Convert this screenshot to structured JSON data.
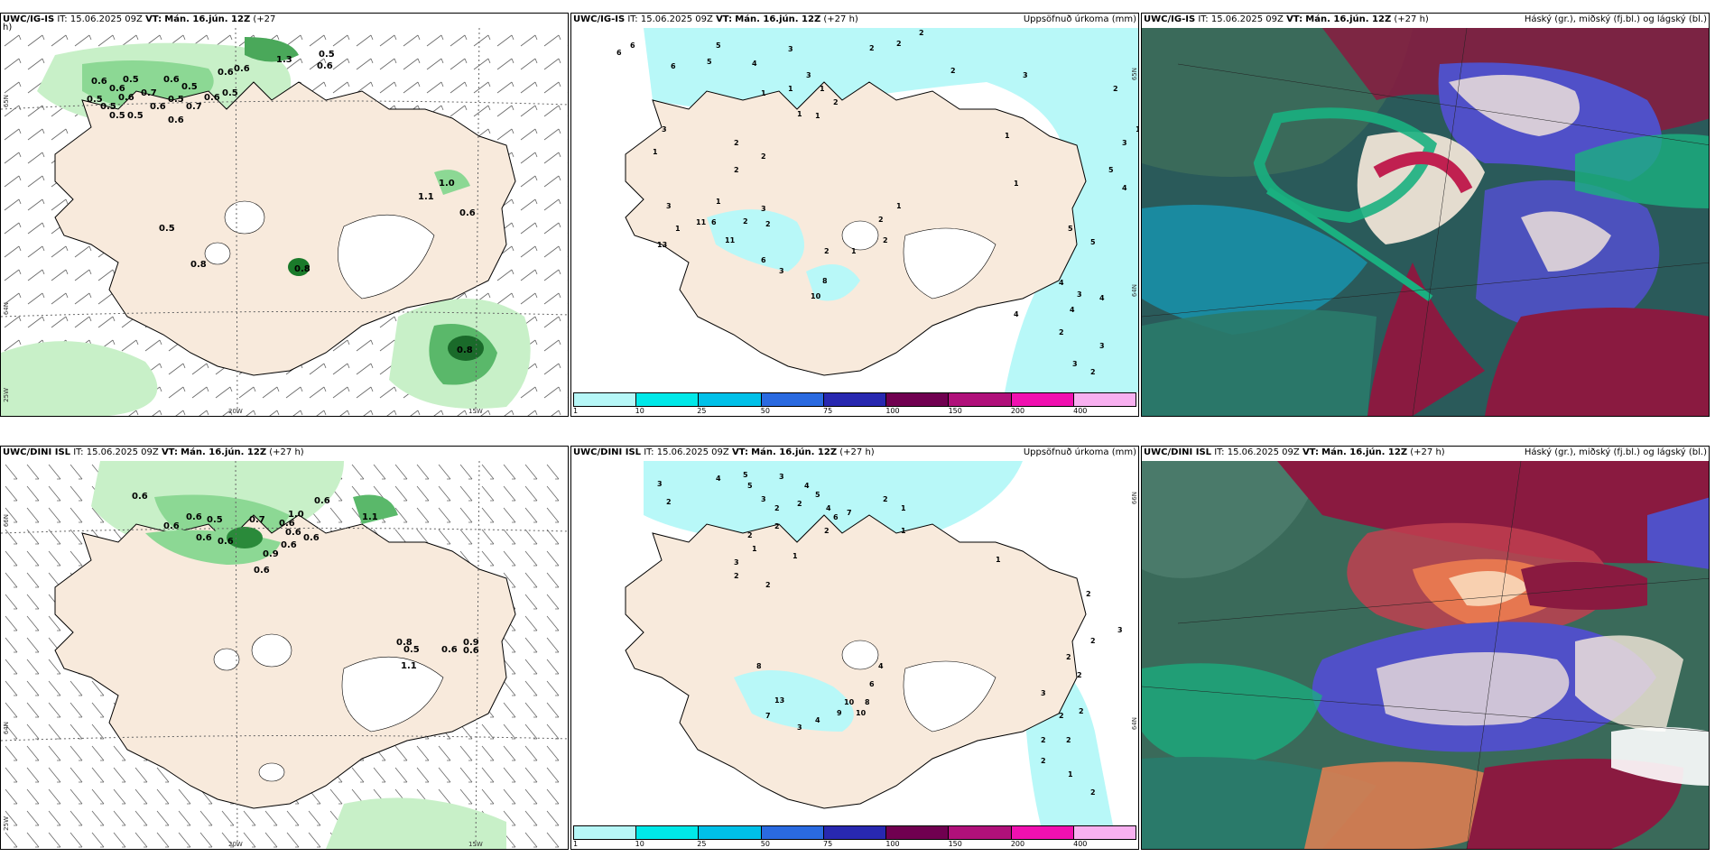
{
  "panels": [
    {
      "id": "p1",
      "model": "UWC/IG-IS",
      "it_label": "IT:",
      "it_value": "15.06.2025 09Z",
      "vt_label": "VT:",
      "vt_value": "Mán. 16.jún. 12Z",
      "lead": "(+27",
      "lead2": "h)",
      "right_title": "",
      "lat_labels": [
        "65N",
        "64N",
        "25W"
      ],
      "lon_labels": [
        "20W",
        "15W"
      ],
      "values": [
        "0.6",
        "0.6",
        "0.5",
        "0.6",
        "0.5",
        "0.6",
        "0.6",
        "0.5",
        "0.5",
        "0.6",
        "0.6",
        "0.5",
        "0.7",
        "0.6",
        "0.5",
        "0.5",
        "0.6",
        "0.7",
        "0.6",
        "0.5",
        "0.8",
        "1.0",
        "1.1",
        "0.6",
        "0.5",
        "0.8",
        "0.8",
        "0.5",
        "1.3"
      ]
    },
    {
      "id": "p2",
      "model": "UWC/IG-IS",
      "it_label": "IT:",
      "it_value": "15.06.2025 09Z",
      "vt_label": "VT:",
      "vt_value": "Mán. 16.jún. 12Z",
      "lead": "(+27 h)",
      "right_title": "Uppsöfnuð úrkoma (mm)",
      "lat_labels": [
        "65N",
        "64N"
      ],
      "values": [
        "6",
        "6",
        "6",
        "5",
        "5",
        "4",
        "3",
        "3",
        "2",
        "2",
        "2",
        "2",
        "1",
        "1",
        "2",
        "1",
        "1",
        "1",
        "3",
        "1",
        "2",
        "2",
        "2",
        "1",
        "1",
        "3",
        "2",
        "3",
        "2",
        "11",
        "6",
        "11",
        "13",
        "10",
        "8",
        "6",
        "3",
        "2",
        "1",
        "2",
        "2",
        "1",
        "5",
        "5",
        "4",
        "3",
        "4",
        "4",
        "4",
        "2",
        "3",
        "3",
        "2",
        "5",
        "4",
        "2",
        "1",
        "3",
        "3",
        "1",
        "1"
      ],
      "legend_ticks": [
        "1",
        "10",
        "25",
        "50",
        "75",
        "100",
        "150",
        "200",
        "400"
      ]
    },
    {
      "id": "p3",
      "model": "UWC/IG-IS",
      "it_label": "IT:",
      "it_value": "15.06.2025 09Z",
      "vt_label": "VT:",
      "vt_value": "Mán. 16.jún. 12Z",
      "lead": "(+27 h)",
      "right_title": "Háský (gr.), miðský (fj.bl.) og lágský (bl.)"
    },
    {
      "id": "p4",
      "model": "UWC/DINI ISL",
      "it_label": "IT:",
      "it_value": "15.06.2025 09Z",
      "vt_label": "VT:",
      "vt_value": "Mán. 16.jún. 12Z",
      "lead": "(+27 h)",
      "right_title": "",
      "lat_labels": [
        "66N",
        "64N",
        "25W"
      ],
      "lon_labels": [
        "20W",
        "15W"
      ],
      "values": [
        "0.6",
        "0.6",
        "0.6",
        "0.6",
        "0.5",
        "0.7",
        "1.0",
        "0.6",
        "0.6",
        "0.6",
        "0.6",
        "0.9",
        "0.6",
        "0.6",
        "0.6",
        "1.1",
        "0.8",
        "0.5",
        "1.1",
        "0.6",
        "0.9",
        "0.6"
      ]
    },
    {
      "id": "p5",
      "model": "UWC/DINI ISL",
      "it_label": "IT:",
      "it_value": "15.06.2025 09Z",
      "vt_label": "VT:",
      "vt_value": "Mán. 16.jún. 12Z",
      "lead": "(+27 h)",
      "right_title": "Uppsöfnuð úrkoma (mm)",
      "lat_labels": [
        "66N",
        "64N"
      ],
      "values": [
        "3",
        "2",
        "4",
        "5",
        "5",
        "3",
        "3",
        "2",
        "2",
        "4",
        "5",
        "4",
        "6",
        "7",
        "2",
        "2",
        "1",
        "2",
        "2",
        "3",
        "1",
        "1",
        "1",
        "2",
        "2",
        "8",
        "10",
        "13",
        "7",
        "3",
        "4",
        "9",
        "10",
        "8",
        "6",
        "4",
        "2",
        "2",
        "2",
        "3",
        "2",
        "2",
        "2",
        "2",
        "2",
        "1",
        "2",
        "3",
        "2",
        "1"
      ],
      "legend_ticks": [
        "1",
        "10",
        "25",
        "50",
        "75",
        "100",
        "150",
        "200",
        "400"
      ]
    },
    {
      "id": "p6",
      "model": "UWC/DINI ISL",
      "it_label": "IT:",
      "it_value": "15.06.2025 09Z",
      "vt_label": "VT:",
      "vt_value": "Mán. 16.jún. 12Z",
      "lead": "(+27 h)",
      "right_title": "Háský (gr.), miðský (fj.bl.) og lágský (bl.)"
    }
  ],
  "legend_colors": [
    "#b6f7f7",
    "#00e8e8",
    "#00c0e8",
    "#2a6ae0",
    "#2828b0",
    "#700050",
    "#b0107a",
    "#f010b0",
    "#f8b0f0"
  ],
  "colors": {
    "land": "#f8eadc",
    "precip": "#b8f8f8",
    "green_light": "#c8f0c8",
    "green_dark": "#1a7a2a",
    "cloud_high": "#1ab080",
    "cloud_mid": "#5050c8",
    "cloud_low": "#8a1a40",
    "sea_dark": "#2a5a5a"
  }
}
